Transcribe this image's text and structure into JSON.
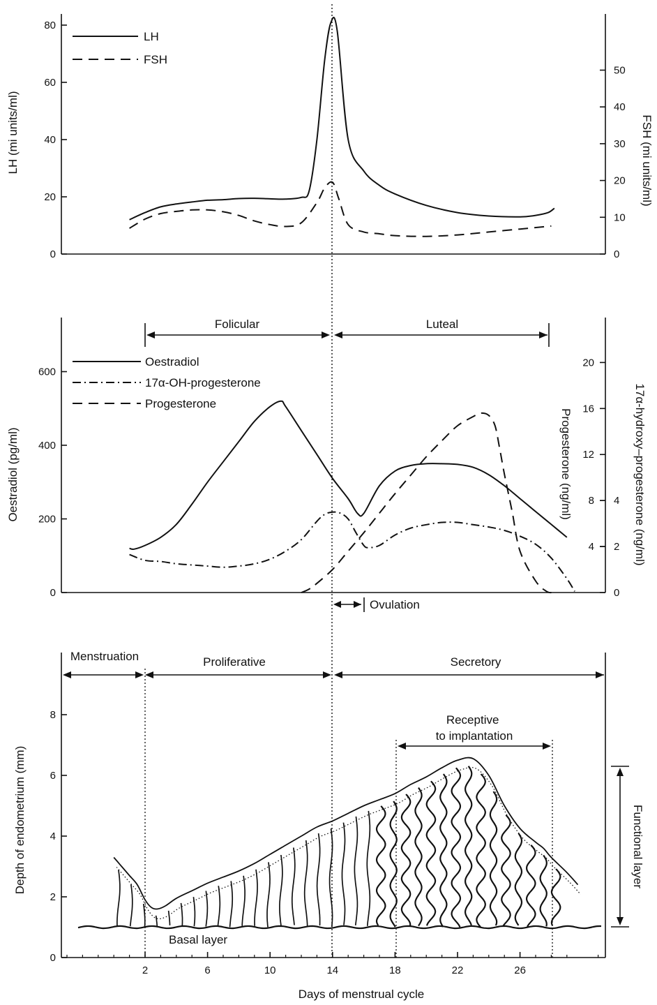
{
  "colors": {
    "ink": "#111111",
    "background": "#ffffff"
  },
  "chart_data": [
    {
      "type": "line",
      "panel": "gonadotrophins",
      "x_label": "",
      "y_left_label": "LH (mi units/ml)",
      "y_right_label": "FSH (mi units/ml)",
      "y_left_ticks": [
        "0",
        "20",
        "40",
        "60",
        "80"
      ],
      "y_right_ticks": [
        "0",
        "10",
        "20",
        "30",
        "40",
        "50"
      ],
      "y_left_range": [
        0,
        80
      ],
      "y_right_range": [
        0,
        62
      ],
      "legend_position": "top-left",
      "series": [
        {
          "name": "LH",
          "axis": "left",
          "style": "solid",
          "x": [
            1,
            2,
            3,
            4,
            5,
            6,
            7,
            8,
            9,
            10,
            11,
            12,
            12.5,
            13,
            13.5,
            13.9,
            14.3,
            15,
            16,
            17,
            18,
            20,
            22,
            24,
            26,
            27,
            27.8,
            28.2
          ],
          "y": [
            12,
            14.5,
            16.5,
            17.5,
            18.2,
            18.8,
            19,
            19.4,
            19.5,
            19.3,
            19.2,
            19.8,
            22,
            40,
            68,
            81,
            78,
            40,
            29,
            24,
            21,
            17,
            14.5,
            13.3,
            13,
            13.5,
            14.5,
            16
          ]
        },
        {
          "name": "FSH",
          "axis": "right",
          "style": "dashed",
          "x": [
            1,
            2,
            3,
            4,
            5,
            6,
            7,
            8,
            9,
            10,
            11,
            12,
            13,
            13.5,
            14,
            14.4,
            15,
            16,
            17,
            18,
            20,
            22,
            24,
            26,
            28
          ],
          "y": [
            7,
            9.5,
            11,
            11.6,
            12,
            12,
            11.5,
            10.5,
            9,
            8,
            7.5,
            8.5,
            14,
            18,
            19.5,
            15,
            8,
            6,
            5.5,
            5,
            4.8,
            5.2,
            6,
            6.8,
            7.6
          ]
        }
      ]
    },
    {
      "type": "line",
      "panel": "steroids",
      "x_label": "",
      "y_left_label": "Oestradiol (pg/ml)",
      "y_right_label_inner": "Progesterone (ng/ml)",
      "y_right_label_outer": "17α-hydroxy–progesterone (ng/ml)",
      "y_left_ticks": [
        "0",
        "200",
        "400",
        "600"
      ],
      "y_right_inner_ticks": [
        "4",
        "8",
        "12",
        "16",
        "20"
      ],
      "y_right_outer_ticks": [
        "0",
        "2",
        "4"
      ],
      "y_left_range": [
        0,
        750
      ],
      "y_right_inner_range": [
        0,
        23.8
      ],
      "phases": [
        {
          "label": "Folicular",
          "from": 2,
          "to": 14
        },
        {
          "label": "Luteal",
          "from": 14,
          "to": 28
        }
      ],
      "ovulation_label": "Ovulation",
      "legend_position": "top-left",
      "series": [
        {
          "name": "Oestradiol",
          "axis": "left",
          "style": "solid",
          "x": [
            1,
            1.3,
            2,
            3,
            4,
            5,
            6,
            7,
            8,
            9,
            10,
            10.7,
            11,
            12,
            13,
            14,
            15,
            15.6,
            16,
            17,
            18,
            19,
            20,
            21,
            22,
            23,
            24,
            25,
            26,
            27,
            28,
            29
          ],
          "y": [
            120,
            118,
            128,
            150,
            185,
            240,
            300,
            355,
            410,
            465,
            505,
            520,
            505,
            440,
            375,
            310,
            255,
            215,
            215,
            290,
            330,
            345,
            350,
            350,
            348,
            340,
            320,
            290,
            255,
            220,
            185,
            150
          ]
        },
        {
          "name": "17α-OH-progesterone",
          "axis": "right_outer",
          "style": "dash-dot",
          "x": [
            1,
            2,
            3,
            4,
            5,
            6,
            7,
            8,
            9,
            10,
            11,
            12,
            13,
            13.5,
            14,
            14.5,
            15,
            15.5,
            16,
            16.3,
            17,
            18,
            19,
            20,
            21,
            22,
            23,
            24,
            25,
            26,
            27,
            28,
            29,
            29.5
          ],
          "y": [
            1.65,
            1.4,
            1.35,
            1.25,
            1.2,
            1.15,
            1.1,
            1.15,
            1.25,
            1.45,
            1.8,
            2.3,
            3.1,
            3.4,
            3.5,
            3.45,
            3.2,
            2.6,
            2.05,
            1.95,
            2.05,
            2.5,
            2.8,
            2.95,
            3.05,
            3.05,
            2.95,
            2.85,
            2.7,
            2.45,
            2.1,
            1.5,
            0.6,
            0.05
          ]
        },
        {
          "name": "Progesterone",
          "axis": "right_inner",
          "style": "dashed",
          "x": [
            12,
            12.5,
            13,
            14,
            15,
            16,
            17,
            18,
            19,
            20,
            21,
            22,
            23,
            23.5,
            24,
            24.4,
            24.7,
            25,
            25.5,
            26,
            27,
            27.7,
            28.1
          ],
          "y": [
            0,
            0.3,
            0.8,
            2,
            3.6,
            5.2,
            6.9,
            8.6,
            10.2,
            11.8,
            13.2,
            14.5,
            15.3,
            15.6,
            15.4,
            14.5,
            12.5,
            10.3,
            7,
            3.6,
            1,
            0.1,
            0
          ]
        }
      ]
    },
    {
      "type": "area",
      "panel": "endometrium",
      "x_label": "Days of menstrual cycle",
      "y_label": "Depth of endometrium (mm)",
      "x_ticks": [
        "2",
        "6",
        "10",
        "14",
        "18",
        "22",
        "26"
      ],
      "y_ticks": [
        "0",
        "2",
        "4",
        "6",
        "8"
      ],
      "x_range": [
        -3,
        32
      ],
      "y_range": [
        0,
        9.6
      ],
      "phases": [
        {
          "label": "Menstruation",
          "from": -3,
          "to": 2
        },
        {
          "label": "Proliferative",
          "from": 2,
          "to": 14
        },
        {
          "label": "Secretory",
          "from": 14,
          "to": 31.8
        }
      ],
      "receptive_window": {
        "label": "Receptive\nto implantation",
        "from": 18,
        "to": 28
      },
      "basal_layer_label": "Basal layer",
      "functional_layer_label": "Functional layer",
      "basal_layer_depth": 1.0,
      "surface": {
        "x": [
          0,
          0.5,
          1,
          1.5,
          2,
          2.4,
          2.8,
          3.3,
          4,
          5,
          6,
          7,
          8,
          9,
          10,
          11,
          12,
          13,
          14,
          15,
          16,
          17,
          18,
          19,
          20,
          21,
          22,
          23,
          24,
          25,
          26,
          27,
          27.5,
          28,
          29,
          29.7
        ],
        "y": [
          3.3,
          3.0,
          2.7,
          2.4,
          1.9,
          1.65,
          1.6,
          1.7,
          1.95,
          2.2,
          2.45,
          2.65,
          2.85,
          3.1,
          3.4,
          3.7,
          4.0,
          4.3,
          4.5,
          4.75,
          5.0,
          5.2,
          5.4,
          5.7,
          5.95,
          6.25,
          6.5,
          6.55,
          6.0,
          5.0,
          4.25,
          3.8,
          3.6,
          3.3,
          2.8,
          2.4
        ]
      }
    }
  ]
}
